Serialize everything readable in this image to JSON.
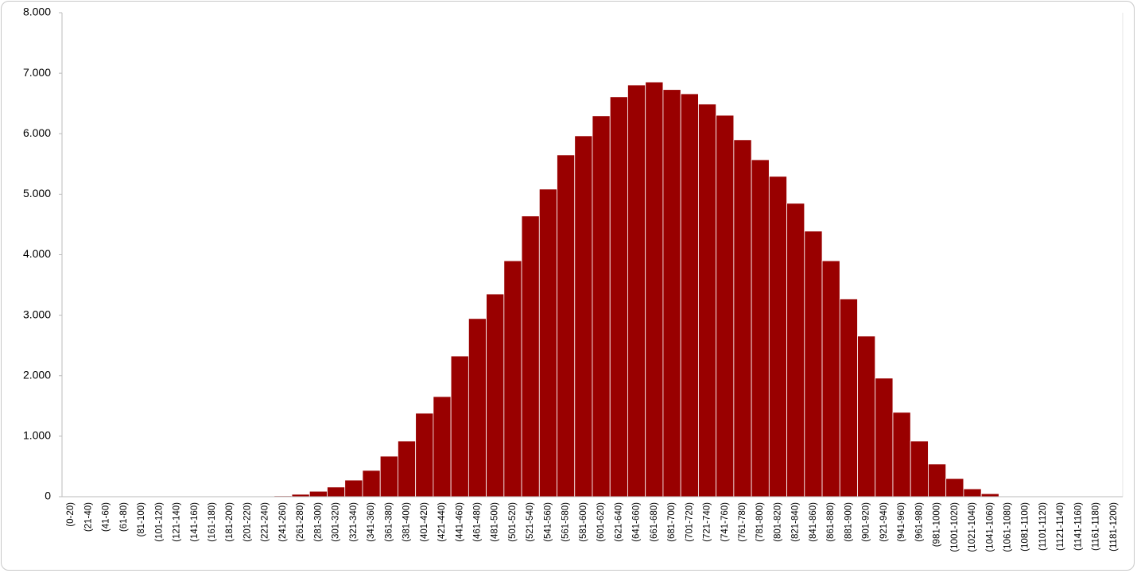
{
  "chart_data": {
    "type": "bar",
    "color": "#990000",
    "grid": false,
    "categories": [
      "(0-20)",
      "(21-40)",
      "(41-60)",
      "(61-80)",
      "(81-100)",
      "(101-120)",
      "(121-140)",
      "(141-160)",
      "(161-180)",
      "(181-200)",
      "(201-220)",
      "(221-240)",
      "(241-260)",
      "(261-280)",
      "(281-300)",
      "(301-320)",
      "(321-340)",
      "(341-360)",
      "(361-380)",
      "(381-400)",
      "(401-420)",
      "(421-440)",
      "(441-460)",
      "(461-480)",
      "(481-500)",
      "(501-520)",
      "(521-540)",
      "(541-560)",
      "(561-580)",
      "(581-600)",
      "(601-620)",
      "(621-640)",
      "(641-660)",
      "(661-680)",
      "(681-700)",
      "(701-720)",
      "(721-740)",
      "(741-760)",
      "(761-780)",
      "(781-800)",
      "(801-820)",
      "(821-840)",
      "(841-860)",
      "(861-880)",
      "(881-900)",
      "(901-920)",
      "(921-940)",
      "(941-960)",
      "(961-980)",
      "(981-1000)",
      "(1001-1020)",
      "(1021-1040)",
      "(1041-1060)",
      "(1061-1080)",
      "(1081-1100)",
      "(1101-1120)",
      "(1121-1140)",
      "(1141-1160)",
      "(1161-1180)",
      "(1181-1200)"
    ],
    "values": [
      0,
      0,
      0,
      0,
      0,
      0,
      0,
      0,
      0,
      0,
      0,
      0,
      15,
      40,
      90,
      160,
      275,
      435,
      670,
      920,
      1380,
      1655,
      2325,
      2945,
      3350,
      3900,
      4640,
      5085,
      5650,
      5965,
      6295,
      6610,
      6805,
      6855,
      6730,
      6660,
      6490,
      6305,
      5900,
      5570,
      5295,
      4850,
      4390,
      3900,
      3270,
      2655,
      1960,
      1395,
      920,
      540,
      300,
      130,
      50,
      0,
      0,
      0,
      0,
      0,
      0,
      0
    ],
    "ylim": [
      0,
      8000
    ],
    "yticks": [
      0,
      {
        "value": 1000,
        "label": "1.000"
      },
      {
        "value": 2000,
        "label": "2.000"
      },
      {
        "value": 3000,
        "label": "3.000"
      },
      {
        "value": 4000,
        "label": "4.000"
      },
      {
        "value": 5000,
        "label": "5.000"
      },
      {
        "value": 6000,
        "label": "6.000"
      },
      {
        "value": 7000,
        "label": "7.000"
      },
      {
        "value": 8000,
        "label": "8.000"
      }
    ]
  }
}
